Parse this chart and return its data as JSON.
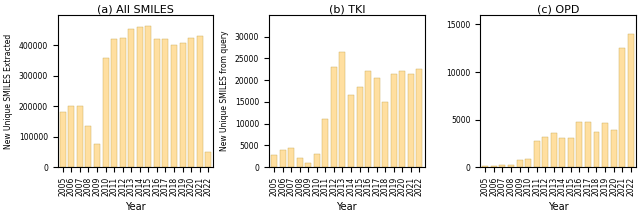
{
  "all_smiles_years": [
    2005,
    2006,
    2007,
    2008,
    2009,
    2010,
    2011,
    2012,
    2013,
    2014,
    2015,
    2016,
    2017,
    2018,
    2019,
    2020,
    2021,
    2022
  ],
  "all_smiles_vals": [
    180000,
    200000,
    200000,
    135000,
    75000,
    360000,
    420000,
    425000,
    455000,
    462000,
    465000,
    422000,
    422000,
    402000,
    407000,
    425000,
    432000,
    50000
  ],
  "tki_years": [
    2005,
    2006,
    2007,
    2008,
    2009,
    2010,
    2011,
    2012,
    2013,
    2014,
    2015,
    2016,
    2017,
    2018,
    2019,
    2020,
    2021,
    2022
  ],
  "tki_vals": [
    2800,
    4000,
    4500,
    2200,
    1000,
    3100,
    11000,
    23000,
    26500,
    16500,
    18500,
    22000,
    20500,
    15000,
    21500,
    22000,
    21500,
    22500
  ],
  "opd_years": [
    2005,
    2006,
    2007,
    2008,
    2009,
    2010,
    2011,
    2012,
    2013,
    2014,
    2015,
    2016,
    2017,
    2018,
    2019,
    2020,
    2021,
    2022
  ],
  "opd_vals": [
    100,
    150,
    200,
    200,
    800,
    900,
    2800,
    3200,
    3600,
    3100,
    3100,
    4800,
    4700,
    3700,
    4600,
    3900,
    12500,
    14000
  ],
  "bar_color": "#FFDFA0",
  "bar_edgecolor": "#C8A850",
  "title_a": "(a) All SMILES",
  "title_b": "(b) TKI",
  "title_c": "(c) OPD",
  "ylabel_a": "New Unique SMILES Extracted",
  "ylabel_bc": "New Unique SMILES from query",
  "xlabel": "Year",
  "ylim_a": [
    0,
    500000
  ],
  "yticks_a": [
    0,
    100000,
    200000,
    300000,
    400000
  ],
  "ylim_b": [
    0,
    35000
  ],
  "yticks_b": [
    0,
    5000,
    10000,
    15000,
    20000,
    25000,
    30000
  ],
  "ylim_c": [
    0,
    16000
  ],
  "yticks_c": [
    0,
    5000,
    10000,
    15000
  ]
}
